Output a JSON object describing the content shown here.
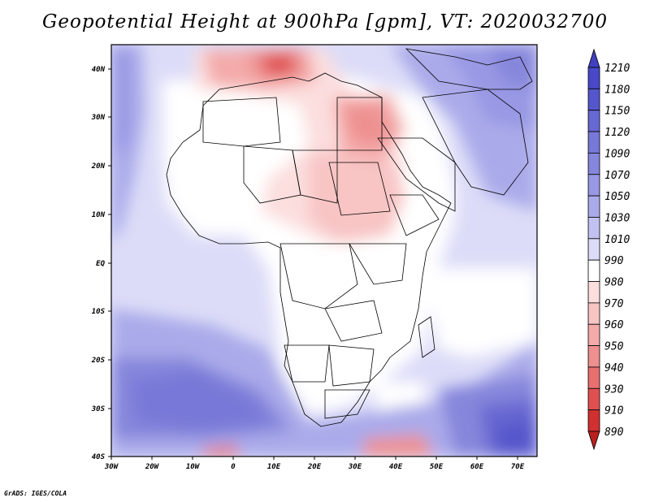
{
  "title": "Geopotential Height at 900hPa [gpm], VT: 2020032700",
  "footer": "GrADS: IGES/COLA",
  "map": {
    "lon_labels": [
      "30W",
      "20W",
      "10W",
      "0",
      "10E",
      "20E",
      "30E",
      "40E",
      "50E",
      "60E",
      "70E"
    ],
    "lat_labels": [
      "40N",
      "30N",
      "20N",
      "10N",
      "EQ",
      "10S",
      "20S",
      "30S",
      "40S"
    ]
  },
  "colorbar": {
    "levels": [
      "1210",
      "1180",
      "1150",
      "1120",
      "1090",
      "1070",
      "1050",
      "1030",
      "1010",
      "990",
      "980",
      "970",
      "960",
      "950",
      "940",
      "930",
      "910",
      "890"
    ],
    "colors": [
      "#4040c0",
      "#4848c8",
      "#5656cc",
      "#6868d2",
      "#7878d8",
      "#8686dc",
      "#9898e4",
      "#aaaaea",
      "#c2c2f2",
      "#dcdcf8",
      "#ffffff",
      "#fcdede",
      "#f8c4c4",
      "#f4aaaa",
      "#ee9090",
      "#e87070",
      "#e05050",
      "#d03030",
      "#b82020"
    ]
  }
}
